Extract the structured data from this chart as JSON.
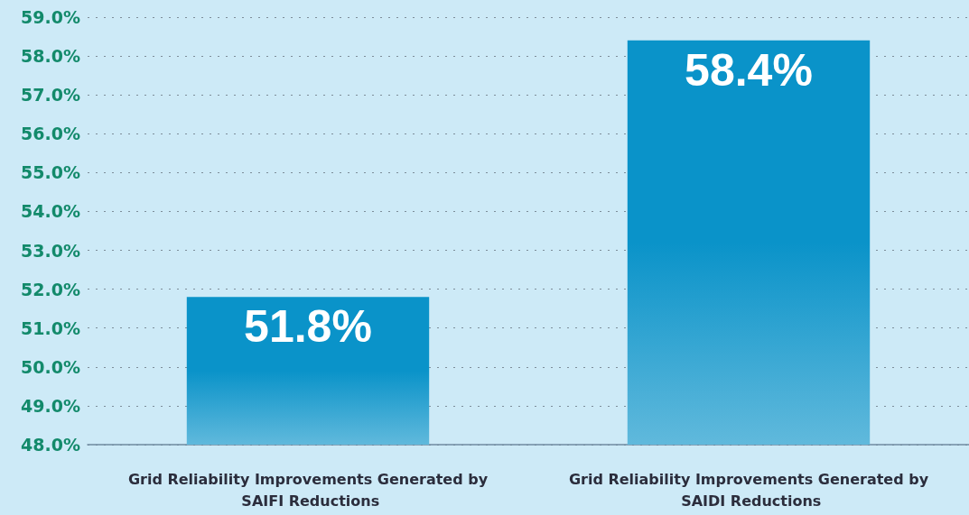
{
  "chart_data": {
    "type": "bar",
    "categories": [
      "Grid Reliability Improvements Generated by SAIFI Reductions",
      "Grid Reliability Improvements Generated by SAIDI Reductions"
    ],
    "values": [
      51.8,
      58.4
    ],
    "value_labels": [
      "51.8%",
      "58.4%"
    ],
    "color": "#0a93c9",
    "ylim": [
      48,
      59
    ],
    "yticks": [
      {
        "value": 48,
        "label": "48.0%"
      },
      {
        "value": 49,
        "label": "49.0%"
      },
      {
        "value": 50,
        "label": "50.0%"
      },
      {
        "value": 51,
        "label": "51.0%"
      },
      {
        "value": 52,
        "label": "52.0%"
      },
      {
        "value": 53,
        "label": "53.0%"
      },
      {
        "value": 54,
        "label": "54.0%"
      },
      {
        "value": 55,
        "label": "55.0%"
      },
      {
        "value": 56,
        "label": "56.0%"
      },
      {
        "value": 57,
        "label": "57.0%"
      },
      {
        "value": 58,
        "label": "58.0%"
      },
      {
        "value": 59,
        "label": "59.0%"
      }
    ],
    "grid": "y"
  }
}
